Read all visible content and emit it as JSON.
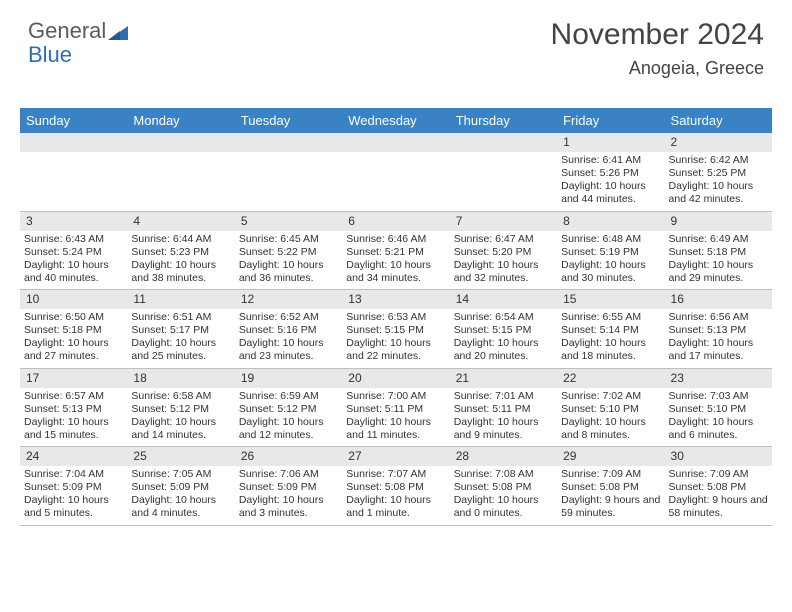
{
  "brand": {
    "part1": "General",
    "part2": "Blue"
  },
  "title": "November 2024",
  "location": "Anogeia, Greece",
  "colors": {
    "header_bg": "#3a82c4",
    "header_text": "#ffffff",
    "daynum_bg": "#e6e8ea",
    "cell_border": "#bfbfbf",
    "body_text": "#333333",
    "brand_gray": "#5b5b5b",
    "brand_blue": "#2f6fb0"
  },
  "day_names": [
    "Sunday",
    "Monday",
    "Tuesday",
    "Wednesday",
    "Thursday",
    "Friday",
    "Saturday"
  ],
  "weeks": [
    [
      null,
      null,
      null,
      null,
      null,
      {
        "n": "1",
        "sunrise": "Sunrise: 6:41 AM",
        "sunset": "Sunset: 5:26 PM",
        "daylight": "Daylight: 10 hours and 44 minutes."
      },
      {
        "n": "2",
        "sunrise": "Sunrise: 6:42 AM",
        "sunset": "Sunset: 5:25 PM",
        "daylight": "Daylight: 10 hours and 42 minutes."
      }
    ],
    [
      {
        "n": "3",
        "sunrise": "Sunrise: 6:43 AM",
        "sunset": "Sunset: 5:24 PM",
        "daylight": "Daylight: 10 hours and 40 minutes."
      },
      {
        "n": "4",
        "sunrise": "Sunrise: 6:44 AM",
        "sunset": "Sunset: 5:23 PM",
        "daylight": "Daylight: 10 hours and 38 minutes."
      },
      {
        "n": "5",
        "sunrise": "Sunrise: 6:45 AM",
        "sunset": "Sunset: 5:22 PM",
        "daylight": "Daylight: 10 hours and 36 minutes."
      },
      {
        "n": "6",
        "sunrise": "Sunrise: 6:46 AM",
        "sunset": "Sunset: 5:21 PM",
        "daylight": "Daylight: 10 hours and 34 minutes."
      },
      {
        "n": "7",
        "sunrise": "Sunrise: 6:47 AM",
        "sunset": "Sunset: 5:20 PM",
        "daylight": "Daylight: 10 hours and 32 minutes."
      },
      {
        "n": "8",
        "sunrise": "Sunrise: 6:48 AM",
        "sunset": "Sunset: 5:19 PM",
        "daylight": "Daylight: 10 hours and 30 minutes."
      },
      {
        "n": "9",
        "sunrise": "Sunrise: 6:49 AM",
        "sunset": "Sunset: 5:18 PM",
        "daylight": "Daylight: 10 hours and 29 minutes."
      }
    ],
    [
      {
        "n": "10",
        "sunrise": "Sunrise: 6:50 AM",
        "sunset": "Sunset: 5:18 PM",
        "daylight": "Daylight: 10 hours and 27 minutes."
      },
      {
        "n": "11",
        "sunrise": "Sunrise: 6:51 AM",
        "sunset": "Sunset: 5:17 PM",
        "daylight": "Daylight: 10 hours and 25 minutes."
      },
      {
        "n": "12",
        "sunrise": "Sunrise: 6:52 AM",
        "sunset": "Sunset: 5:16 PM",
        "daylight": "Daylight: 10 hours and 23 minutes."
      },
      {
        "n": "13",
        "sunrise": "Sunrise: 6:53 AM",
        "sunset": "Sunset: 5:15 PM",
        "daylight": "Daylight: 10 hours and 22 minutes."
      },
      {
        "n": "14",
        "sunrise": "Sunrise: 6:54 AM",
        "sunset": "Sunset: 5:15 PM",
        "daylight": "Daylight: 10 hours and 20 minutes."
      },
      {
        "n": "15",
        "sunrise": "Sunrise: 6:55 AM",
        "sunset": "Sunset: 5:14 PM",
        "daylight": "Daylight: 10 hours and 18 minutes."
      },
      {
        "n": "16",
        "sunrise": "Sunrise: 6:56 AM",
        "sunset": "Sunset: 5:13 PM",
        "daylight": "Daylight: 10 hours and 17 minutes."
      }
    ],
    [
      {
        "n": "17",
        "sunrise": "Sunrise: 6:57 AM",
        "sunset": "Sunset: 5:13 PM",
        "daylight": "Daylight: 10 hours and 15 minutes."
      },
      {
        "n": "18",
        "sunrise": "Sunrise: 6:58 AM",
        "sunset": "Sunset: 5:12 PM",
        "daylight": "Daylight: 10 hours and 14 minutes."
      },
      {
        "n": "19",
        "sunrise": "Sunrise: 6:59 AM",
        "sunset": "Sunset: 5:12 PM",
        "daylight": "Daylight: 10 hours and 12 minutes."
      },
      {
        "n": "20",
        "sunrise": "Sunrise: 7:00 AM",
        "sunset": "Sunset: 5:11 PM",
        "daylight": "Daylight: 10 hours and 11 minutes."
      },
      {
        "n": "21",
        "sunrise": "Sunrise: 7:01 AM",
        "sunset": "Sunset: 5:11 PM",
        "daylight": "Daylight: 10 hours and 9 minutes."
      },
      {
        "n": "22",
        "sunrise": "Sunrise: 7:02 AM",
        "sunset": "Sunset: 5:10 PM",
        "daylight": "Daylight: 10 hours and 8 minutes."
      },
      {
        "n": "23",
        "sunrise": "Sunrise: 7:03 AM",
        "sunset": "Sunset: 5:10 PM",
        "daylight": "Daylight: 10 hours and 6 minutes."
      }
    ],
    [
      {
        "n": "24",
        "sunrise": "Sunrise: 7:04 AM",
        "sunset": "Sunset: 5:09 PM",
        "daylight": "Daylight: 10 hours and 5 minutes."
      },
      {
        "n": "25",
        "sunrise": "Sunrise: 7:05 AM",
        "sunset": "Sunset: 5:09 PM",
        "daylight": "Daylight: 10 hours and 4 minutes."
      },
      {
        "n": "26",
        "sunrise": "Sunrise: 7:06 AM",
        "sunset": "Sunset: 5:09 PM",
        "daylight": "Daylight: 10 hours and 3 minutes."
      },
      {
        "n": "27",
        "sunrise": "Sunrise: 7:07 AM",
        "sunset": "Sunset: 5:08 PM",
        "daylight": "Daylight: 10 hours and 1 minute."
      },
      {
        "n": "28",
        "sunrise": "Sunrise: 7:08 AM",
        "sunset": "Sunset: 5:08 PM",
        "daylight": "Daylight: 10 hours and 0 minutes."
      },
      {
        "n": "29",
        "sunrise": "Sunrise: 7:09 AM",
        "sunset": "Sunset: 5:08 PM",
        "daylight": "Daylight: 9 hours and 59 minutes."
      },
      {
        "n": "30",
        "sunrise": "Sunrise: 7:09 AM",
        "sunset": "Sunset: 5:08 PM",
        "daylight": "Daylight: 9 hours and 58 minutes."
      }
    ]
  ]
}
